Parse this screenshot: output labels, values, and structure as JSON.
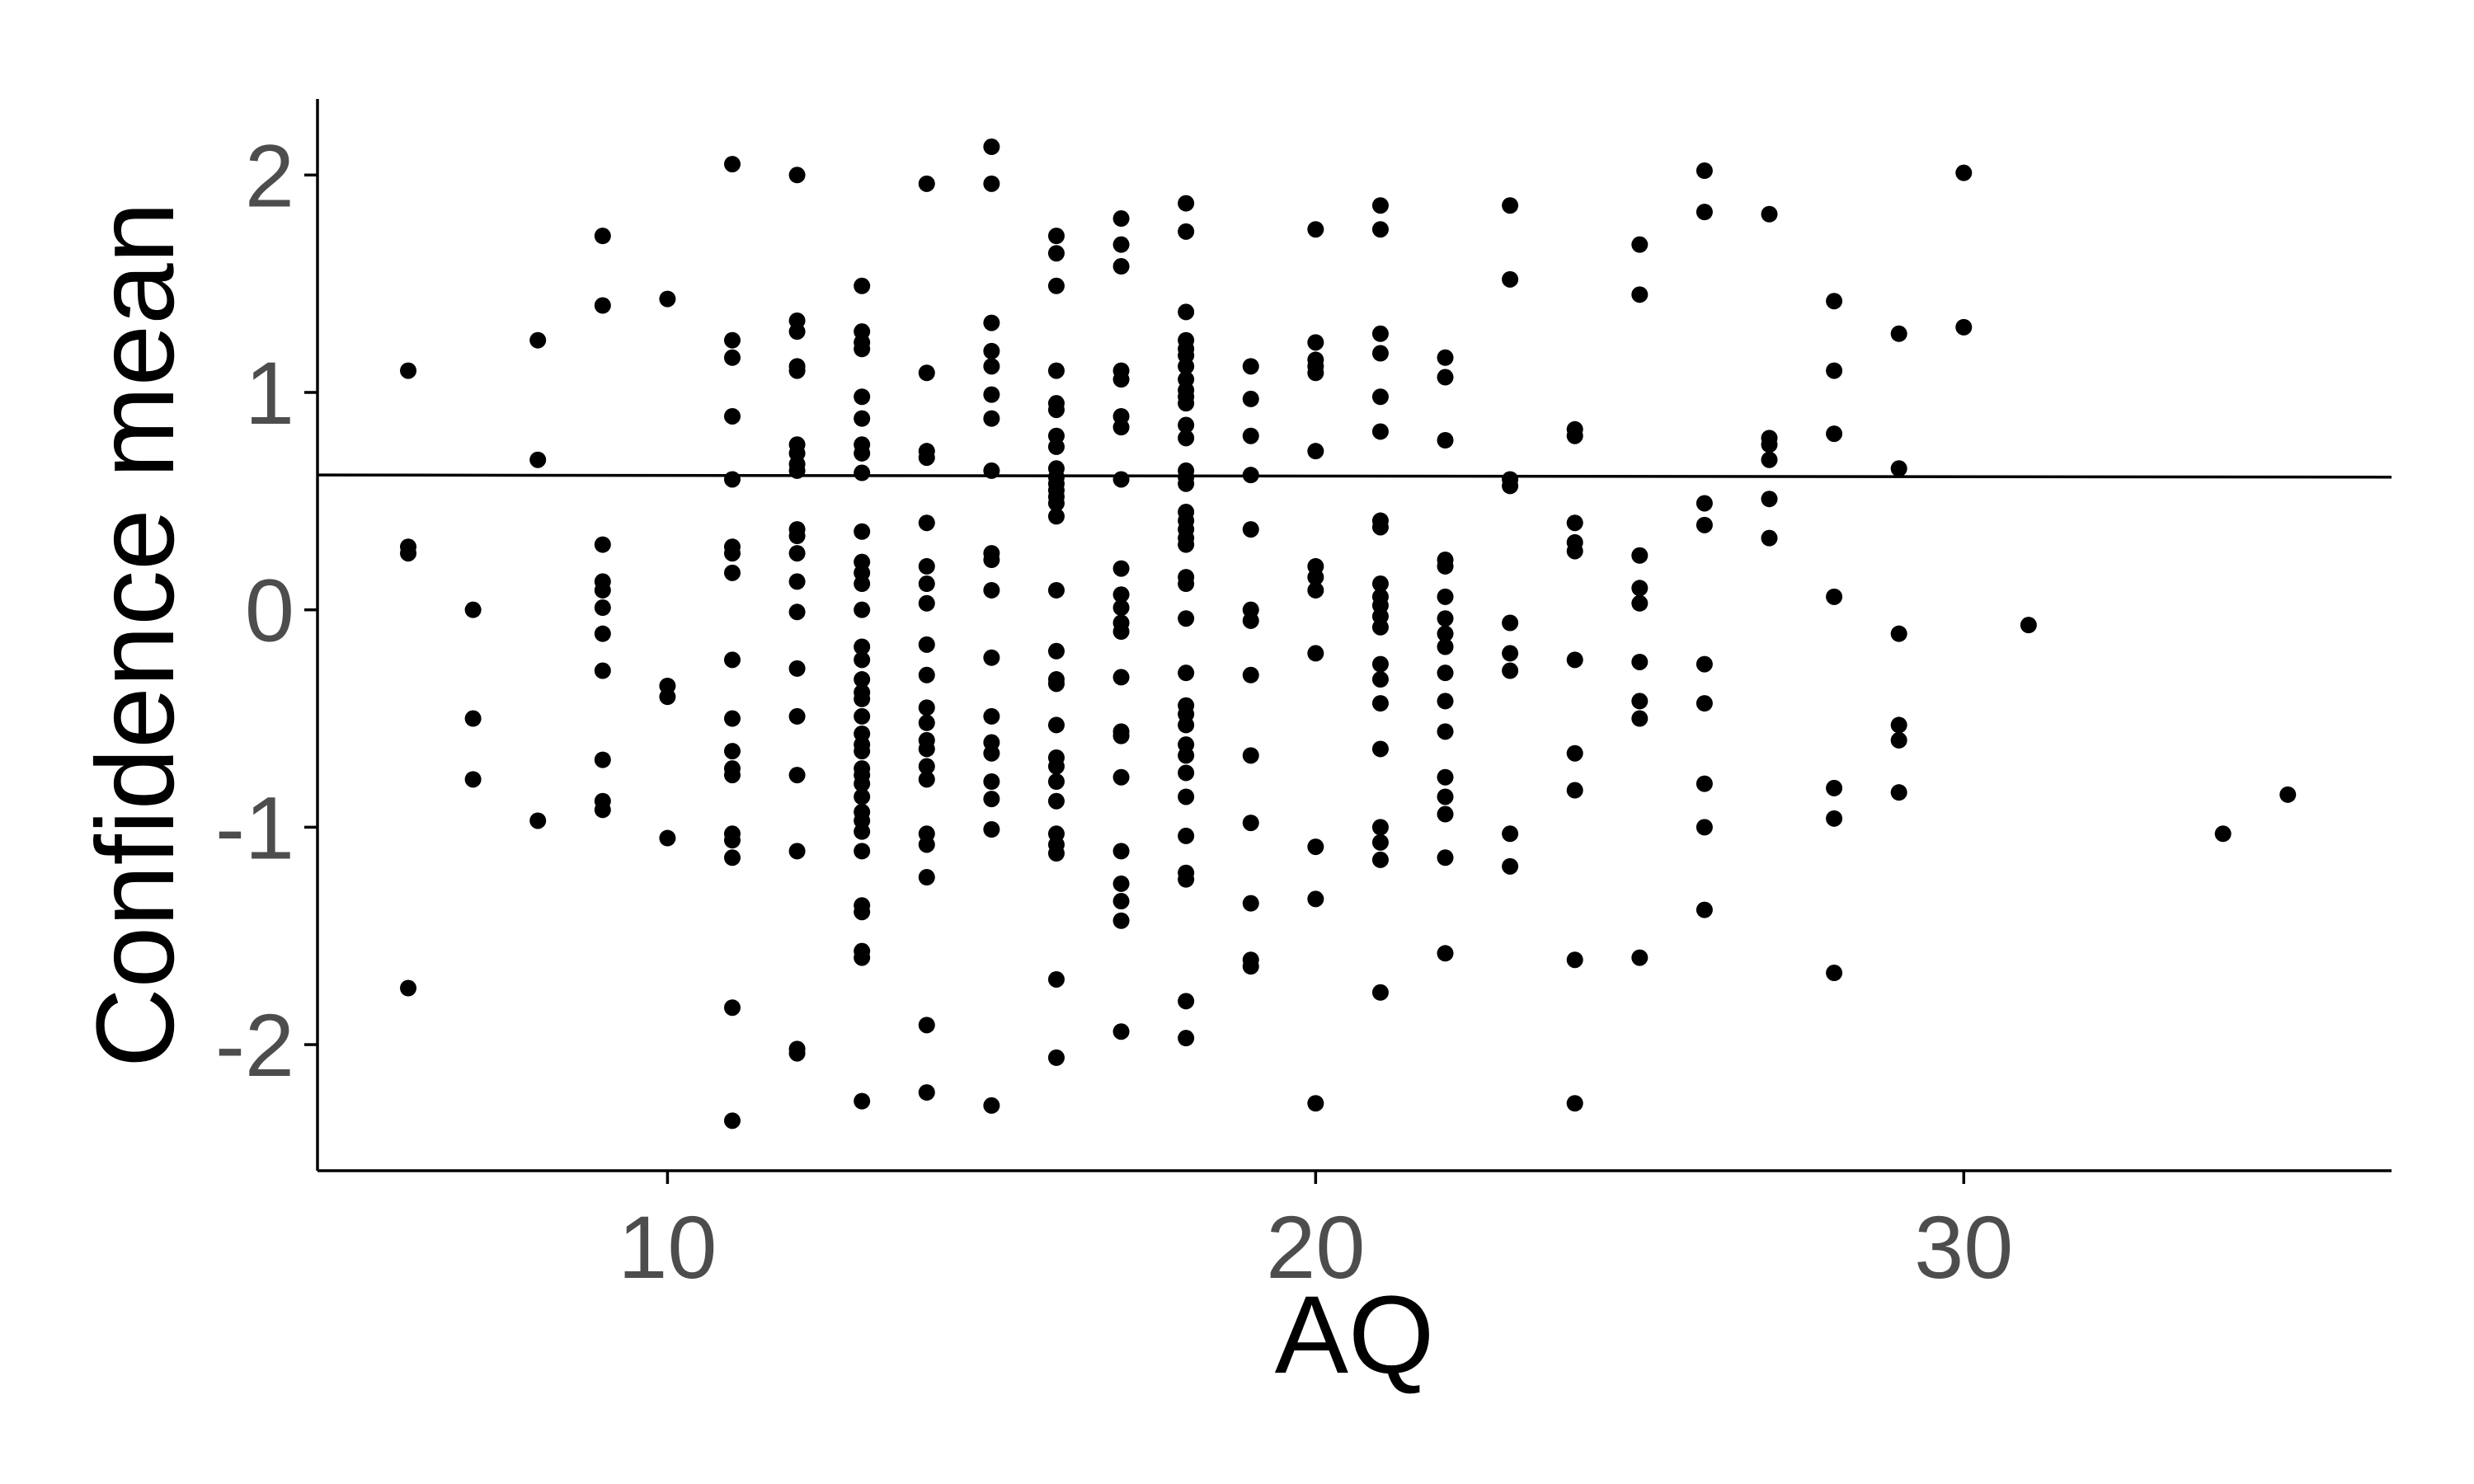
{
  "chart_data": {
    "type": "scatter",
    "title": "",
    "xlabel": "AQ",
    "ylabel": "Confidence mean",
    "xlim": [
      4.6,
      36.6
    ],
    "ylim": [
      -2.58,
      2.35
    ],
    "x_ticks": [
      10,
      20,
      30
    ],
    "y_ticks": [
      -2,
      -1,
      0,
      1,
      2
    ],
    "grid": false,
    "legend": "none",
    "reference_line": {
      "y": 0.62,
      "slope": -0.0003
    },
    "colors": {
      "point": "#000000",
      "line": "#000000",
      "axis": "#000000",
      "tick_label": "#4d4d4d"
    },
    "points": [
      [
        6,
        1.1
      ],
      [
        6,
        0.29
      ],
      [
        6,
        0.26
      ],
      [
        6,
        -1.74
      ],
      [
        7,
        0.0
      ],
      [
        7,
        -0.5
      ],
      [
        7,
        -0.78
      ],
      [
        8,
        1.24
      ],
      [
        8,
        0.69
      ],
      [
        8,
        -0.97
      ],
      [
        9,
        1.72
      ],
      [
        9,
        1.4
      ],
      [
        9,
        0.3
      ],
      [
        9,
        0.13
      ],
      [
        9,
        0.09
      ],
      [
        9,
        0.01
      ],
      [
        9,
        -0.11
      ],
      [
        9,
        -0.28
      ],
      [
        9,
        -0.69
      ],
      [
        9,
        -0.88
      ],
      [
        9,
        -0.92
      ],
      [
        10,
        1.43
      ],
      [
        10,
        -0.35
      ],
      [
        10,
        -0.4
      ],
      [
        10,
        -1.05
      ],
      [
        11,
        2.05
      ],
      [
        11,
        1.24
      ],
      [
        11,
        1.16
      ],
      [
        11,
        0.89
      ],
      [
        11,
        0.6
      ],
      [
        11,
        0.29
      ],
      [
        11,
        0.26
      ],
      [
        11,
        0.17
      ],
      [
        11,
        -0.23
      ],
      [
        11,
        -0.5
      ],
      [
        11,
        -0.65
      ],
      [
        11,
        -0.73
      ],
      [
        11,
        -0.76
      ],
      [
        11,
        -1.03
      ],
      [
        11,
        -1.06
      ],
      [
        11,
        -1.14
      ],
      [
        11,
        -1.83
      ],
      [
        11,
        -2.35
      ],
      [
        12,
        2.0
      ],
      [
        12,
        1.33
      ],
      [
        12,
        1.28
      ],
      [
        12,
        1.12
      ],
      [
        12,
        1.1
      ],
      [
        12,
        0.76
      ],
      [
        12,
        0.72
      ],
      [
        12,
        0.67
      ],
      [
        12,
        0.64
      ],
      [
        12,
        0.37
      ],
      [
        12,
        0.34
      ],
      [
        12,
        0.26
      ],
      [
        12,
        0.13
      ],
      [
        12,
        -0.01
      ],
      [
        12,
        -0.27
      ],
      [
        12,
        -0.49
      ],
      [
        12,
        -0.76
      ],
      [
        12,
        -1.11
      ],
      [
        12,
        -2.02
      ],
      [
        12,
        -2.04
      ],
      [
        13,
        1.49
      ],
      [
        13,
        1.28
      ],
      [
        13,
        1.23
      ],
      [
        13,
        1.2
      ],
      [
        13,
        0.98
      ],
      [
        13,
        0.88
      ],
      [
        13,
        0.76
      ],
      [
        13,
        0.72
      ],
      [
        13,
        0.63
      ],
      [
        13,
        0.36
      ],
      [
        13,
        0.22
      ],
      [
        13,
        0.17
      ],
      [
        13,
        0.12
      ],
      [
        13,
        0.0
      ],
      [
        13,
        -0.17
      ],
      [
        13,
        -0.23
      ],
      [
        13,
        -0.32
      ],
      [
        13,
        -0.38
      ],
      [
        13,
        -0.41
      ],
      [
        13,
        -0.49
      ],
      [
        13,
        -0.57
      ],
      [
        13,
        -0.62
      ],
      [
        13,
        -0.65
      ],
      [
        13,
        -0.73
      ],
      [
        13,
        -0.76
      ],
      [
        13,
        -0.8
      ],
      [
        13,
        -0.86
      ],
      [
        13,
        -0.93
      ],
      [
        13,
        -0.97
      ],
      [
        13,
        -1.02
      ],
      [
        13,
        -1.11
      ],
      [
        13,
        -1.36
      ],
      [
        13,
        -1.39
      ],
      [
        13,
        -1.57
      ],
      [
        13,
        -1.6
      ],
      [
        13,
        -2.26
      ],
      [
        14,
        1.96
      ],
      [
        14,
        1.09
      ],
      [
        14,
        0.73
      ],
      [
        14,
        0.7
      ],
      [
        14,
        0.4
      ],
      [
        14,
        0.2
      ],
      [
        14,
        0.12
      ],
      [
        14,
        0.03
      ],
      [
        14,
        -0.16
      ],
      [
        14,
        -0.3
      ],
      [
        14,
        -0.45
      ],
      [
        14,
        -0.52
      ],
      [
        14,
        -0.6
      ],
      [
        14,
        -0.64
      ],
      [
        14,
        -0.72
      ],
      [
        14,
        -0.78
      ],
      [
        14,
        -1.03
      ],
      [
        14,
        -1.08
      ],
      [
        14,
        -1.23
      ],
      [
        14,
        -1.91
      ],
      [
        14,
        -2.22
      ],
      [
        15,
        2.13
      ],
      [
        15,
        1.96
      ],
      [
        15,
        1.32
      ],
      [
        15,
        1.19
      ],
      [
        15,
        1.12
      ],
      [
        15,
        0.99
      ],
      [
        15,
        0.88
      ],
      [
        15,
        0.64
      ],
      [
        15,
        0.26
      ],
      [
        15,
        0.23
      ],
      [
        15,
        0.09
      ],
      [
        15,
        -0.22
      ],
      [
        15,
        -0.49
      ],
      [
        15,
        -0.61
      ],
      [
        15,
        -0.66
      ],
      [
        15,
        -0.79
      ],
      [
        15,
        -0.87
      ],
      [
        15,
        -1.01
      ],
      [
        15,
        -2.28
      ],
      [
        16,
        1.72
      ],
      [
        16,
        1.64
      ],
      [
        16,
        1.49
      ],
      [
        16,
        1.1
      ],
      [
        16,
        0.95
      ],
      [
        16,
        0.92
      ],
      [
        16,
        0.8
      ],
      [
        16,
        0.75
      ],
      [
        16,
        0.65
      ],
      [
        16,
        0.61
      ],
      [
        16,
        0.58
      ],
      [
        16,
        0.55
      ],
      [
        16,
        0.52
      ],
      [
        16,
        0.49
      ],
      [
        16,
        0.43
      ],
      [
        16,
        0.09
      ],
      [
        16,
        -0.19
      ],
      [
        16,
        -0.32
      ],
      [
        16,
        -0.34
      ],
      [
        16,
        -0.53
      ],
      [
        16,
        -0.68
      ],
      [
        16,
        -0.72
      ],
      [
        16,
        -0.79
      ],
      [
        16,
        -0.88
      ],
      [
        16,
        -1.03
      ],
      [
        16,
        -1.08
      ],
      [
        16,
        -1.12
      ],
      [
        16,
        -1.7
      ],
      [
        16,
        -2.06
      ],
      [
        17,
        1.8
      ],
      [
        17,
        1.68
      ],
      [
        17,
        1.58
      ],
      [
        17,
        1.1
      ],
      [
        17,
        1.06
      ],
      [
        17,
        0.89
      ],
      [
        17,
        0.84
      ],
      [
        17,
        0.6
      ],
      [
        17,
        0.19
      ],
      [
        17,
        0.07
      ],
      [
        17,
        0.01
      ],
      [
        17,
        -0.06
      ],
      [
        17,
        -0.1
      ],
      [
        17,
        -0.31
      ],
      [
        17,
        -0.56
      ],
      [
        17,
        -0.58
      ],
      [
        17,
        -0.77
      ],
      [
        17,
        -1.11
      ],
      [
        17,
        -1.26
      ],
      [
        17,
        -1.34
      ],
      [
        17,
        -1.43
      ],
      [
        17,
        -1.94
      ],
      [
        18,
        1.87
      ],
      [
        18,
        1.74
      ],
      [
        18,
        1.37
      ],
      [
        18,
        1.24
      ],
      [
        18,
        1.2
      ],
      [
        18,
        1.17
      ],
      [
        18,
        1.12
      ],
      [
        18,
        1.06
      ],
      [
        18,
        1.01
      ],
      [
        18,
        0.98
      ],
      [
        18,
        0.95
      ],
      [
        18,
        0.85
      ],
      [
        18,
        0.79
      ],
      [
        18,
        0.64
      ],
      [
        18,
        0.61
      ],
      [
        18,
        0.58
      ],
      [
        18,
        0.45
      ],
      [
        18,
        0.41
      ],
      [
        18,
        0.37
      ],
      [
        18,
        0.33
      ],
      [
        18,
        0.3
      ],
      [
        18,
        0.15
      ],
      [
        18,
        0.12
      ],
      [
        18,
        -0.04
      ],
      [
        18,
        -0.29
      ],
      [
        18,
        -0.44
      ],
      [
        18,
        -0.48
      ],
      [
        18,
        -0.53
      ],
      [
        18,
        -0.62
      ],
      [
        18,
        -0.67
      ],
      [
        18,
        -0.75
      ],
      [
        18,
        -0.86
      ],
      [
        18,
        -1.04
      ],
      [
        18,
        -1.21
      ],
      [
        18,
        -1.24
      ],
      [
        18,
        -1.8
      ],
      [
        18,
        -1.97
      ],
      [
        19,
        1.12
      ],
      [
        19,
        0.97
      ],
      [
        19,
        0.8
      ],
      [
        19,
        0.62
      ],
      [
        19,
        0.37
      ],
      [
        19,
        0.0
      ],
      [
        19,
        -0.05
      ],
      [
        19,
        -0.3
      ],
      [
        19,
        -0.67
      ],
      [
        19,
        -0.98
      ],
      [
        19,
        -1.35
      ],
      [
        19,
        -1.61
      ],
      [
        19,
        -1.64
      ],
      [
        20,
        1.75
      ],
      [
        20,
        1.23
      ],
      [
        20,
        1.15
      ],
      [
        20,
        1.12
      ],
      [
        20,
        1.09
      ],
      [
        20,
        0.73
      ],
      [
        20,
        0.2
      ],
      [
        20,
        0.15
      ],
      [
        20,
        0.09
      ],
      [
        20,
        -0.2
      ],
      [
        20,
        -1.09
      ],
      [
        20,
        -1.33
      ],
      [
        20,
        -2.27
      ],
      [
        21,
        1.86
      ],
      [
        21,
        1.75
      ],
      [
        21,
        1.27
      ],
      [
        21,
        1.18
      ],
      [
        21,
        0.98
      ],
      [
        21,
        0.82
      ],
      [
        21,
        0.41
      ],
      [
        21,
        0.38
      ],
      [
        21,
        0.12
      ],
      [
        21,
        0.06
      ],
      [
        21,
        0.02
      ],
      [
        21,
        -0.03
      ],
      [
        21,
        -0.08
      ],
      [
        21,
        -0.25
      ],
      [
        21,
        -0.32
      ],
      [
        21,
        -0.43
      ],
      [
        21,
        -0.64
      ],
      [
        21,
        -1.0
      ],
      [
        21,
        -1.07
      ],
      [
        21,
        -1.15
      ],
      [
        21,
        -1.76
      ],
      [
        22,
        1.16
      ],
      [
        22,
        1.07
      ],
      [
        22,
        0.78
      ],
      [
        22,
        0.23
      ],
      [
        22,
        0.2
      ],
      [
        22,
        0.06
      ],
      [
        22,
        -0.04
      ],
      [
        22,
        -0.11
      ],
      [
        22,
        -0.17
      ],
      [
        22,
        -0.29
      ],
      [
        22,
        -0.42
      ],
      [
        22,
        -0.56
      ],
      [
        22,
        -0.77
      ],
      [
        22,
        -0.86
      ],
      [
        22,
        -0.94
      ],
      [
        22,
        -1.14
      ],
      [
        22,
        -1.58
      ],
      [
        23,
        1.86
      ],
      [
        23,
        1.52
      ],
      [
        23,
        0.6
      ],
      [
        23,
        0.57
      ],
      [
        23,
        -0.06
      ],
      [
        23,
        -0.2
      ],
      [
        23,
        -0.28
      ],
      [
        23,
        -1.03
      ],
      [
        23,
        -1.18
      ],
      [
        24,
        0.83
      ],
      [
        24,
        0.8
      ],
      [
        24,
        0.4
      ],
      [
        24,
        0.31
      ],
      [
        24,
        0.27
      ],
      [
        24,
        -0.23
      ],
      [
        24,
        -0.66
      ],
      [
        24,
        -0.83
      ],
      [
        24,
        -1.61
      ],
      [
        24,
        -2.27
      ],
      [
        25,
        1.68
      ],
      [
        25,
        1.45
      ],
      [
        25,
        0.25
      ],
      [
        25,
        0.1
      ],
      [
        25,
        0.03
      ],
      [
        25,
        -0.24
      ],
      [
        25,
        -0.42
      ],
      [
        25,
        -0.5
      ],
      [
        25,
        -1.6
      ],
      [
        26,
        2.02
      ],
      [
        26,
        1.83
      ],
      [
        26,
        0.49
      ],
      [
        26,
        0.39
      ],
      [
        26,
        -0.25
      ],
      [
        26,
        -0.43
      ],
      [
        26,
        -0.8
      ],
      [
        26,
        -1.0
      ],
      [
        26,
        -1.38
      ],
      [
        27,
        1.82
      ],
      [
        27,
        0.79
      ],
      [
        27,
        0.76
      ],
      [
        27,
        0.69
      ],
      [
        27,
        0.51
      ],
      [
        27,
        0.33
      ],
      [
        28,
        1.42
      ],
      [
        28,
        1.1
      ],
      [
        28,
        0.81
      ],
      [
        28,
        0.06
      ],
      [
        28,
        -0.82
      ],
      [
        28,
        -0.96
      ],
      [
        28,
        -1.67
      ],
      [
        29,
        1.27
      ],
      [
        29,
        0.65
      ],
      [
        29,
        -0.11
      ],
      [
        29,
        -0.53
      ],
      [
        29,
        -0.6
      ],
      [
        29,
        -0.84
      ],
      [
        30,
        2.01
      ],
      [
        30,
        1.3
      ],
      [
        31,
        -0.07
      ],
      [
        34,
        -1.03
      ],
      [
        35,
        -0.85
      ]
    ]
  }
}
